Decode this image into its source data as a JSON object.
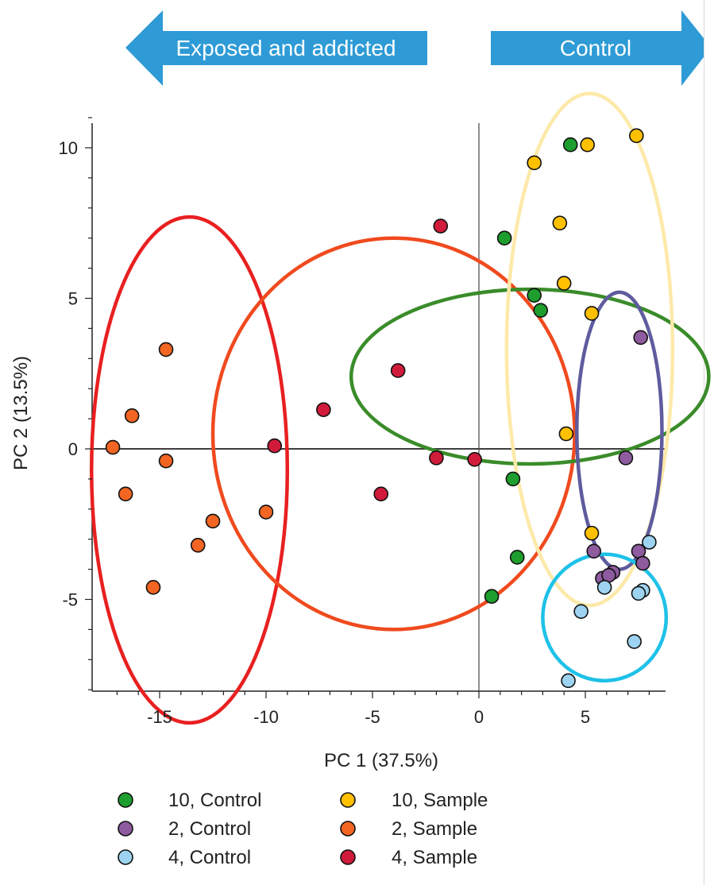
{
  "arrows": {
    "left_label": "Exposed and addicted",
    "right_label": "Control",
    "color": "#2E9BD6",
    "text_color": "#ffffff"
  },
  "chart_data": {
    "type": "scatter",
    "title": "",
    "xlabel": "PC 1 (37.5%)",
    "ylabel": "PC 2 (13.5%)",
    "xlim": [
      -17.5,
      8.5
    ],
    "ylim": [
      -8,
      11
    ],
    "xticks": [
      -15,
      -10,
      -5,
      0,
      5
    ],
    "yticks": [
      -5,
      0,
      5,
      10
    ],
    "x_minor_step": 1,
    "y_minor_step": 1,
    "zero_lines": true,
    "grid": false,
    "legend_position": "bottom",
    "series": [
      {
        "name": "10, Control",
        "color": "#1E9E2E",
        "points": [
          [
            4.3,
            10.1
          ],
          [
            1.2,
            7.0
          ],
          [
            2.6,
            5.1
          ],
          [
            2.9,
            4.6
          ],
          [
            1.6,
            -1.0
          ],
          [
            1.8,
            -3.6
          ],
          [
            0.6,
            -4.9
          ]
        ]
      },
      {
        "name": "10, Sample",
        "color": "#FFC000",
        "points": [
          [
            5.1,
            10.1
          ],
          [
            7.4,
            10.4
          ],
          [
            2.6,
            9.5
          ],
          [
            3.8,
            7.5
          ],
          [
            4.0,
            5.5
          ],
          [
            5.3,
            4.5
          ],
          [
            4.1,
            0.5
          ],
          [
            5.3,
            -2.8
          ]
        ]
      },
      {
        "name": "2, Control",
        "color": "#8E5B9E",
        "points": [
          [
            7.6,
            3.7
          ],
          [
            6.9,
            -0.3
          ],
          [
            5.4,
            -3.4
          ],
          [
            7.5,
            -3.4
          ],
          [
            7.7,
            -3.8
          ],
          [
            5.8,
            -4.3
          ],
          [
            6.3,
            -4.1
          ],
          [
            6.1,
            -4.2
          ]
        ]
      },
      {
        "name": "2, Sample",
        "color": "#F26522",
        "points": [
          [
            -14.7,
            3.3
          ],
          [
            -16.3,
            1.1
          ],
          [
            -17.2,
            0.05
          ],
          [
            -14.7,
            -0.4
          ],
          [
            -16.6,
            -1.5
          ],
          [
            -10.0,
            -2.1
          ],
          [
            -12.5,
            -2.4
          ],
          [
            -13.2,
            -3.2
          ],
          [
            -15.3,
            -4.6
          ]
        ]
      },
      {
        "name": "4, Control",
        "color": "#9DD3F0",
        "points": [
          [
            8.0,
            -3.1
          ],
          [
            5.9,
            -4.6
          ],
          [
            7.7,
            -4.7
          ],
          [
            7.5,
            -4.8
          ],
          [
            4.8,
            -5.4
          ],
          [
            7.3,
            -6.4
          ],
          [
            4.2,
            -7.7
          ]
        ]
      },
      {
        "name": "4, Sample",
        "color": "#D01C3A",
        "points": [
          [
            -1.8,
            7.4
          ],
          [
            -3.8,
            2.6
          ],
          [
            -7.3,
            1.3
          ],
          [
            -9.6,
            0.1
          ],
          [
            -2.0,
            -0.3
          ],
          [
            -0.2,
            -0.35
          ],
          [
            -4.6,
            -1.5
          ]
        ]
      }
    ],
    "ellipses": [
      {
        "color": "#E82020",
        "cx": -13.6,
        "cy": -0.7,
        "rx": 8.4,
        "ry": 4.6,
        "angle": 90
      },
      {
        "color": "#F04A1E",
        "cx": -4.0,
        "cy": 0.5,
        "rx": 8.5,
        "ry": 6.5,
        "angle": 0
      },
      {
        "color": "#3A8C2A",
        "cx": 2.4,
        "cy": 2.4,
        "rx": 8.4,
        "ry": 2.9,
        "angle": 80
      },
      {
        "color": "#FDE9A9",
        "cx": 5.2,
        "cy": 3.3,
        "rx": 8.5,
        "ry": 3.9,
        "angle": 90
      },
      {
        "color": "#5F5B9E",
        "cx": 6.6,
        "cy": 0.6,
        "rx": 4.6,
        "ry": 2.0,
        "angle": 90
      },
      {
        "color": "#1EC1E8",
        "cx": 5.9,
        "cy": -5.6,
        "rx": 2.1,
        "ry": 2.9,
        "angle": 90
      }
    ]
  },
  "legend": {
    "entries": [
      {
        "label": "10, Control",
        "color": "#1E9E2E"
      },
      {
        "label": "10, Sample",
        "color": "#FFC000"
      },
      {
        "label": "2, Control",
        "color": "#8E5B9E"
      },
      {
        "label": "2, Sample",
        "color": "#F26522"
      },
      {
        "label": "4, Control",
        "color": "#9DD3F0"
      },
      {
        "label": "4, Sample",
        "color": "#D01C3A"
      }
    ]
  }
}
